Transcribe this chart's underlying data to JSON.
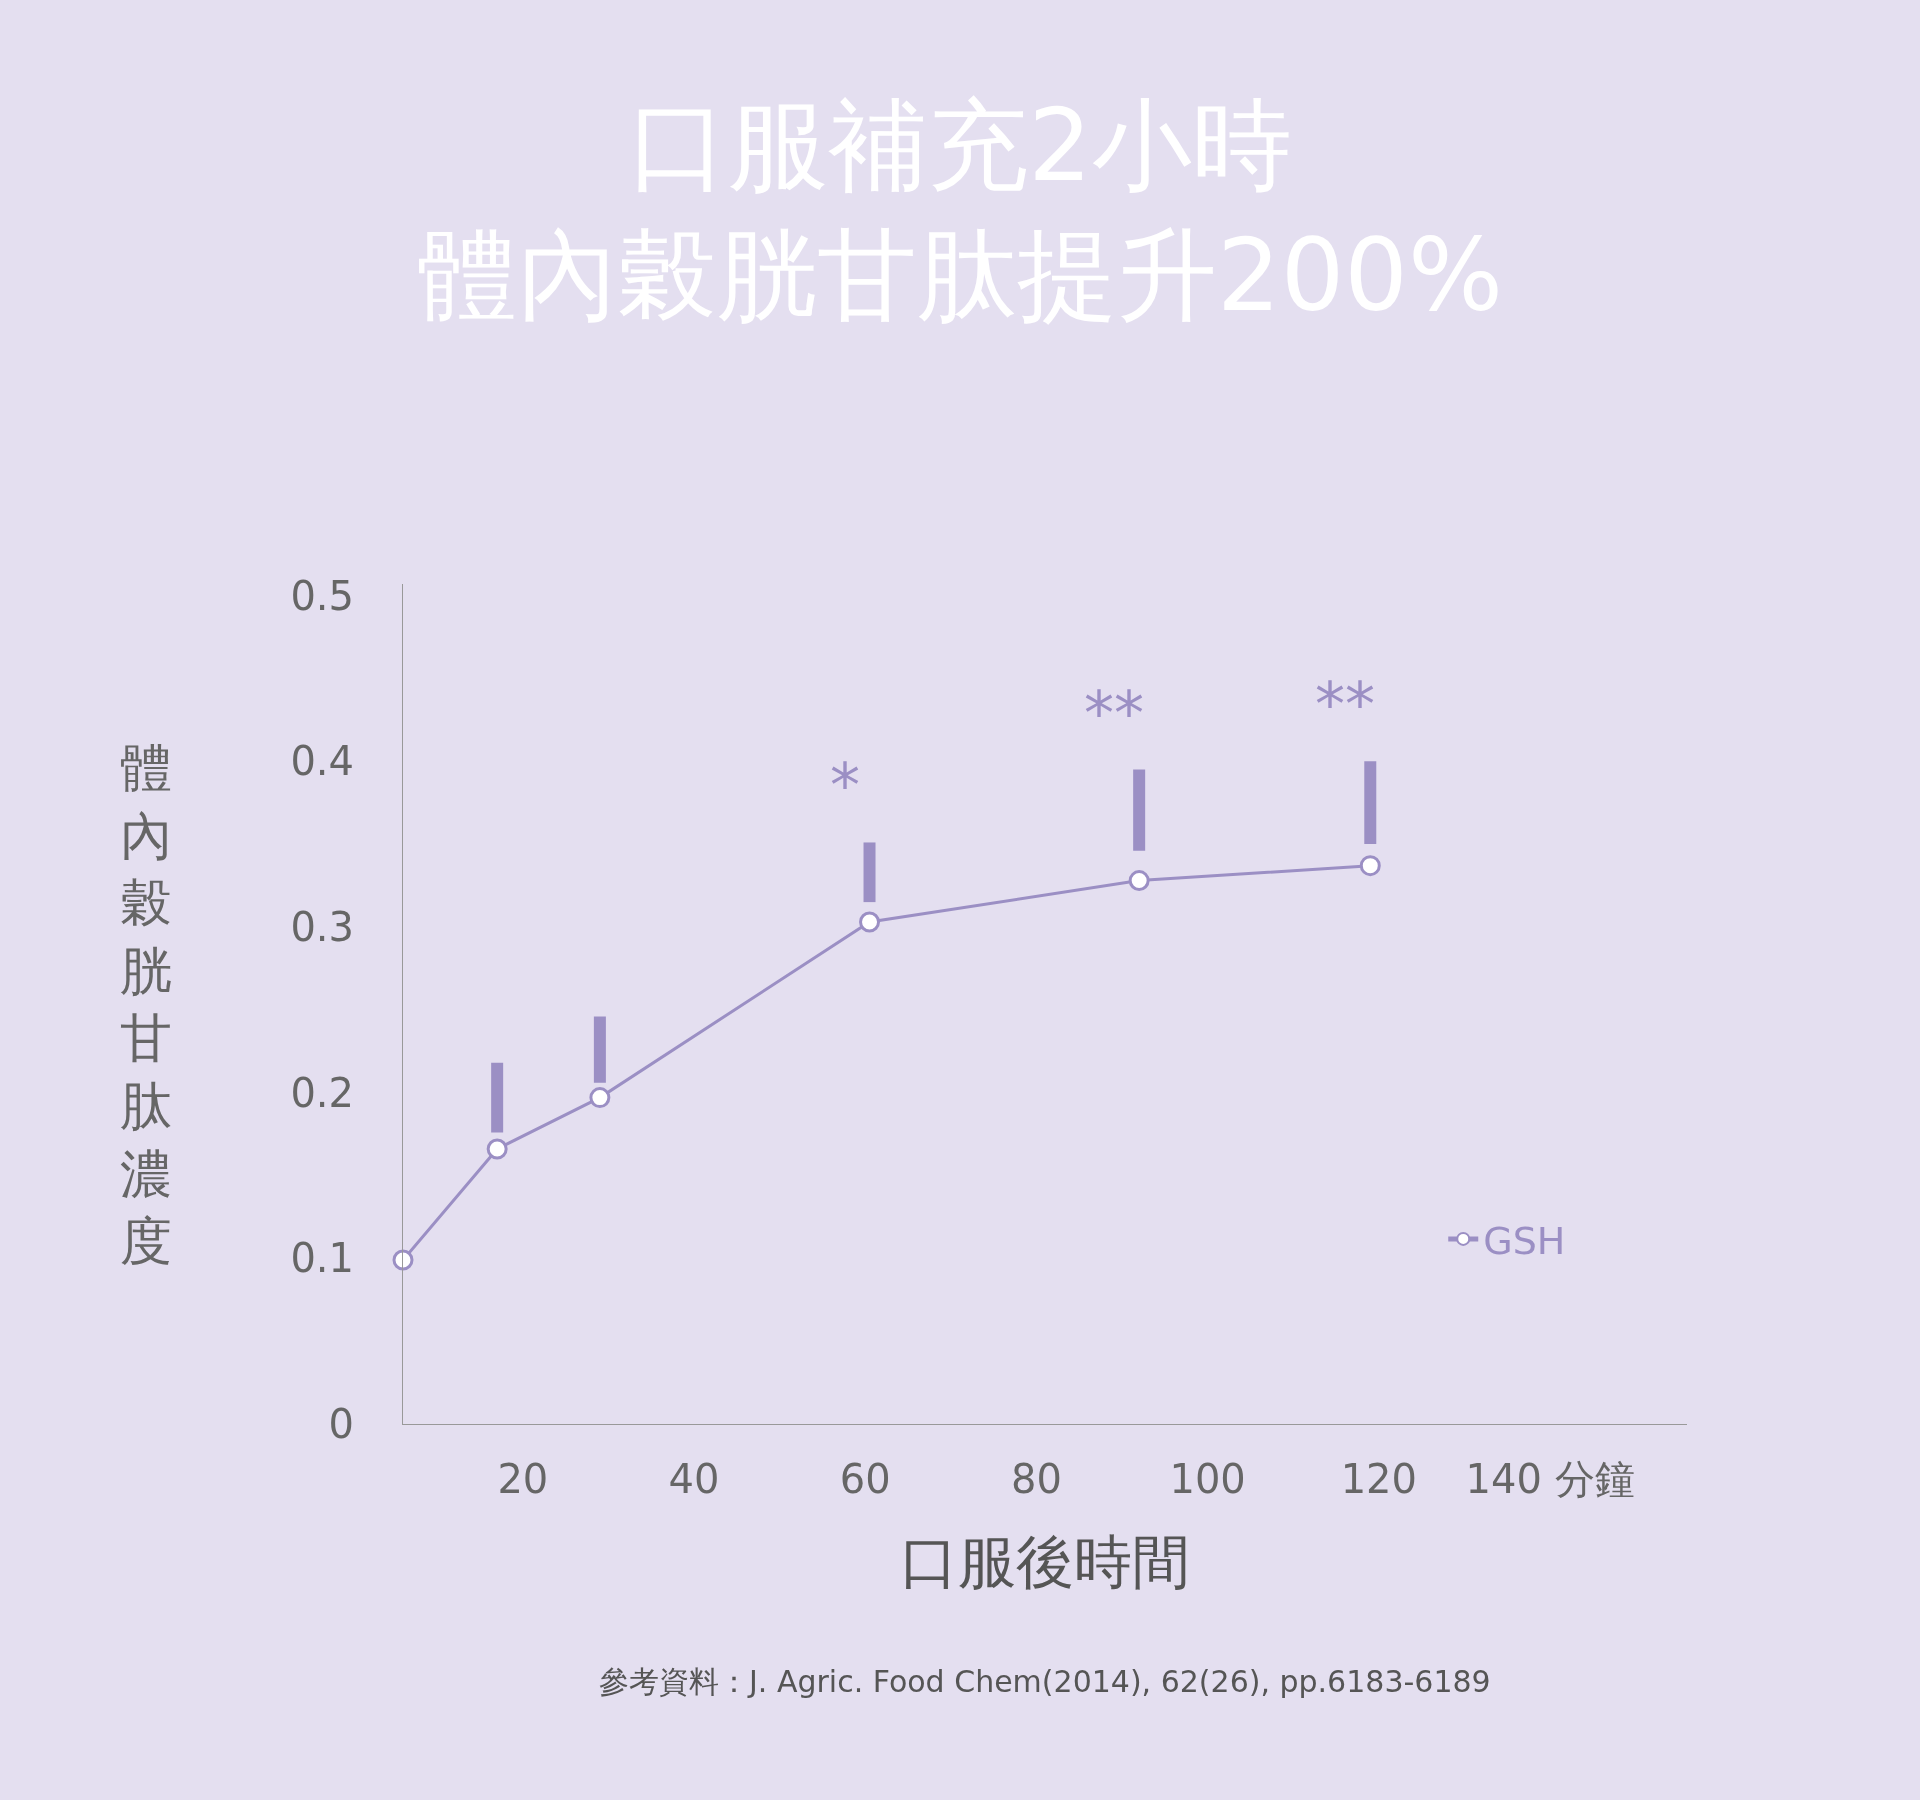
{
  "chart_data": {
    "type": "line",
    "title": "口服補充2小時",
    "subtitle": "體內穀胱甘肽提升200%",
    "xlabel": "口服後時間",
    "ylabel": "體內穀胱甘肽濃度",
    "x": [
      6,
      17,
      29,
      60.5,
      92,
      119
    ],
    "series": [
      {
        "name": "GSH",
        "color": "#9b8fc4",
        "values": [
          0.099,
          0.166,
          0.197,
          0.303,
          0.328,
          0.337
        ],
        "errors": [
          null,
          [
            0.176,
            0.218
          ],
          [
            0.206,
            0.246
          ],
          [
            0.315,
            0.351
          ],
          [
            0.346,
            0.395
          ],
          [
            0.35,
            0.4
          ]
        ]
      }
    ],
    "xlim": [
      6,
      156
    ],
    "xticks": [
      20,
      40,
      60,
      80,
      100,
      120,
      {
        "value": 140,
        "label": "140 分鐘"
      }
    ],
    "ylim": [
      0,
      0.507
    ],
    "yticks": [
      0,
      0.1,
      0.2,
      0.3,
      0.4,
      0.5
    ],
    "marker": "circle",
    "grid": false,
    "legend": "bottom right",
    "annotations": [
      "*",
      "**",
      "**",
      "參考資料：J. Agric. Food Chem(2014), 62(26), pp.6183-6189"
    ]
  }
}
